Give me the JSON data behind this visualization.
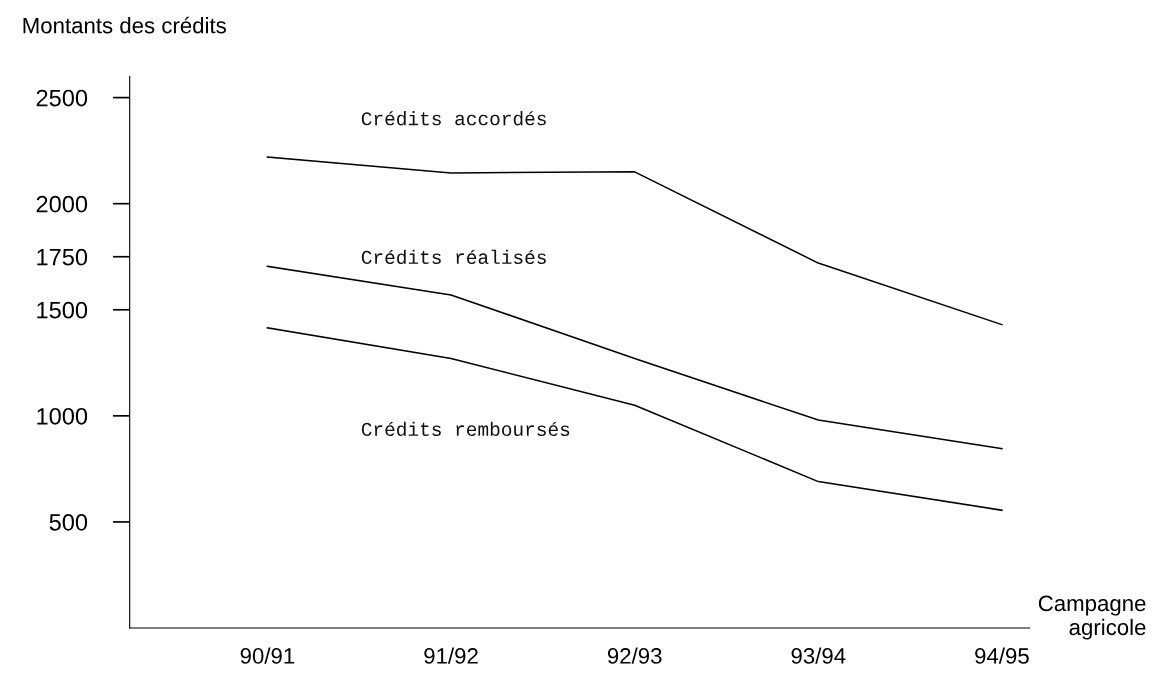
{
  "chart_data": {
    "type": "line",
    "ylabel": "Montants des crédits",
    "xlabel": "Campagne\nagricole",
    "categories": [
      "90/91",
      "91/92",
      "92/93",
      "93/94",
      "94/95"
    ],
    "series": [
      {
        "name": "Crédits accordés",
        "color": "#000000",
        "values": [
          2220,
          2145,
          2150,
          1720,
          1430
        ]
      },
      {
        "name": "Crédits réalisés",
        "color": "#000000",
        "values": [
          1705,
          1570,
          1270,
          980,
          845
        ]
      },
      {
        "name": "Crédits remboursés",
        "color": "#000000",
        "values": [
          1415,
          1270,
          1050,
          690,
          555
        ]
      }
    ],
    "ylim": [
      0,
      2600
    ],
    "yticks": [
      500,
      1000,
      1500,
      1750,
      2000,
      2500
    ],
    "grid": false,
    "legend": false,
    "marker": "none",
    "line_style": "solid"
  }
}
